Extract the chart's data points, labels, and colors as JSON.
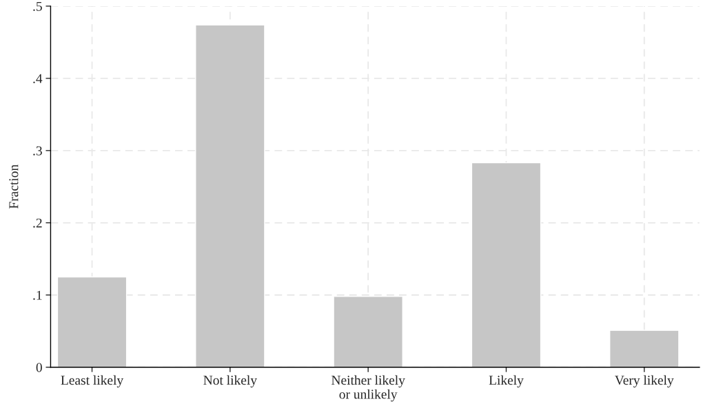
{
  "chart_data": {
    "type": "bar",
    "ylabel": "Fraction",
    "categories": [
      "Least likely",
      "Not likely",
      "Neither likely\nor unlikely",
      "Likely",
      "Very likely"
    ],
    "values": [
      0.125,
      0.474,
      0.098,
      0.283,
      0.051
    ],
    "color": "#c6c6c6",
    "ylim": [
      0,
      0.5
    ],
    "yticks": [
      {
        "value": 0,
        "label": "0"
      },
      {
        "value": 0.1,
        "label": ".1"
      },
      {
        "value": 0.2,
        "label": ".2"
      },
      {
        "value": 0.3,
        "label": ".3"
      },
      {
        "value": 0.4,
        "label": ".4"
      },
      {
        "value": 0.5,
        "label": ".5"
      }
    ],
    "grid": true
  }
}
